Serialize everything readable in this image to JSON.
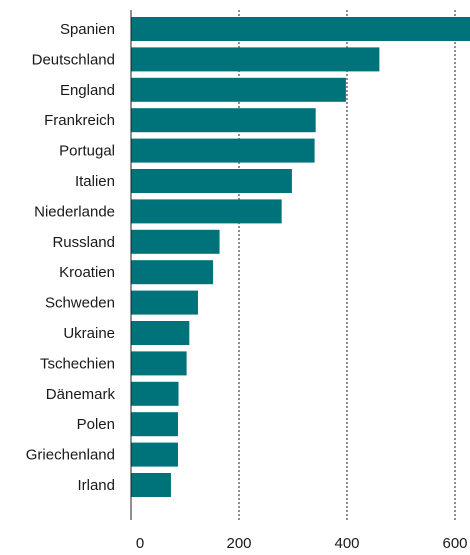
{
  "chart_data": {
    "type": "bar",
    "orientation": "horizontal",
    "categories": [
      "Spanien",
      "Deutschland",
      "England",
      "Frankreich",
      "Portugal",
      "Italien",
      "Niederlande",
      "Russland",
      "Kroatien",
      "Schweden",
      "Ukraine",
      "Tschechien",
      "Dänemark",
      "Polen",
      "Griechenland",
      "Irland"
    ],
    "values": [
      630,
      460,
      398,
      342,
      340,
      298,
      279,
      164,
      152,
      124,
      108,
      103,
      88,
      87,
      87,
      74
    ],
    "xlim": [
      0,
      630
    ],
    "xticks": [
      0,
      200,
      400,
      600
    ],
    "tick_labels": [
      "0",
      "200",
      "400",
      "600"
    ],
    "grid": "vertical dashed",
    "bar_color": "#00727a",
    "title": "",
    "xlabel": "",
    "ylabel": ""
  }
}
